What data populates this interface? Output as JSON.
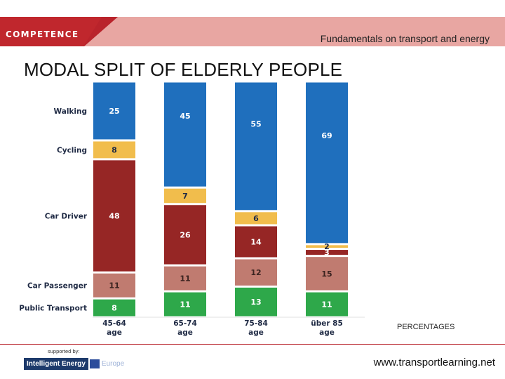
{
  "header": {
    "logo_text": "COMPETENCE",
    "subtitle": "Fundamentals on transport and energy"
  },
  "page_title": "MODAL SPLIT OF ELDERLY PEOPLE",
  "chart_data": {
    "type": "bar",
    "stacked": true,
    "normalized": true,
    "title": "MODAL SPLIT OF ELDERLY PEOPLE",
    "ylabel": "PERCENTAGES",
    "categories": [
      [
        "45-64",
        "age"
      ],
      [
        "65-74",
        "age"
      ],
      [
        "75-84",
        "age"
      ],
      [
        "über 85",
        "age"
      ]
    ],
    "series": [
      {
        "name": "Public Transport",
        "color": "#2ea84a",
        "values": [
          8,
          11,
          13,
          11
        ]
      },
      {
        "name": "Car Passenger",
        "color": "#c07b70",
        "values": [
          11,
          11,
          12,
          15
        ]
      },
      {
        "name": "Car Driver",
        "color": "#962625",
        "values": [
          48,
          26,
          14,
          3
        ]
      },
      {
        "name": "Cycling",
        "color": "#f1bd4c",
        "values": [
          8,
          7,
          6,
          2
        ]
      },
      {
        "name": "Walking",
        "color": "#1f6fbd",
        "values": [
          25,
          45,
          55,
          69
        ]
      }
    ]
  },
  "footer": {
    "percent_note": "PERCENTAGES",
    "supported_by": "supported by:",
    "sponsor": "Intelligent Energy",
    "sponsor_region": "Europe",
    "website": "www.transportlearning.net"
  }
}
